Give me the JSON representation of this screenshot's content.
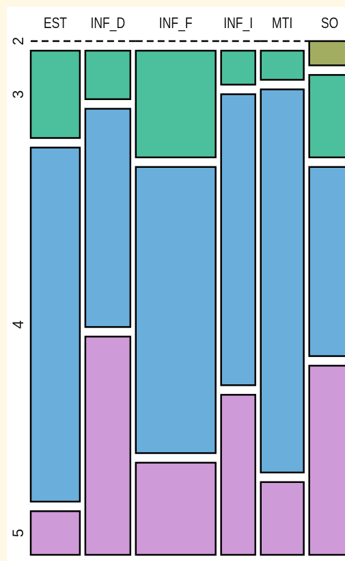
{
  "chart_data": {
    "type": "mosaic",
    "categories": [
      "EST",
      "INF_D",
      "INF_F",
      "INF_I",
      "MTI",
      "SO"
    ],
    "widths": [
      16.8,
      15.4,
      27.3,
      11.7,
      14.7,
      14.0
    ],
    "series": [
      {
        "name": "2",
        "color": "#a3ad62",
        "values": [
          0,
          0,
          0,
          0,
          0,
          5
        ]
      },
      {
        "name": "3",
        "color": "#4cbf9c",
        "values": [
          18,
          10,
          22,
          7,
          6,
          17
        ]
      },
      {
        "name": "4",
        "color": "#6aaedb",
        "values": [
          73,
          45,
          59,
          60,
          79,
          39
        ]
      },
      {
        "name": "5",
        "color": "#cf9ad8",
        "values": [
          9,
          45,
          19,
          33,
          15,
          39
        ]
      }
    ]
  }
}
